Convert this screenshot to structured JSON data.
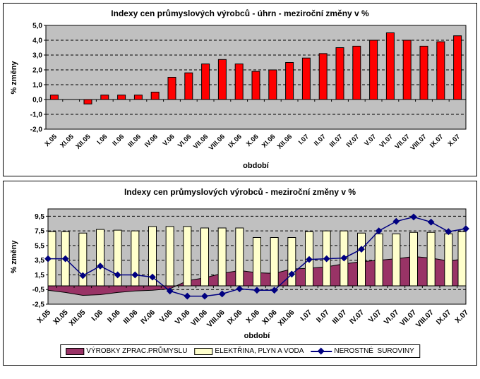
{
  "chart_data": [
    {
      "type": "bar",
      "title": "Indexy cen průmyslových výrobců - úhrn - meziroční změny v %",
      "ylabel": "% změny",
      "xlabel": "období",
      "ylim": [
        -2,
        5
      ],
      "ytick_values": [
        5,
        4,
        3,
        2,
        1,
        0,
        -1,
        -2
      ],
      "ytick_labels": [
        "5,0",
        "4,0",
        "3,0",
        "2,0",
        "1,0",
        "0,0",
        "-1,0",
        "-2,0"
      ],
      "grid": "dashed-horizontal",
      "legend_position": "none",
      "plot_bg": "#c0c0c0",
      "categories": [
        "X.05",
        "XI.05",
        "XII.05",
        "I.06",
        "II.06",
        "III.06",
        "IV.06",
        "V.06",
        "VI.06",
        "VII.06",
        "VIII.06",
        "IX.06",
        "X.06",
        "XI.06",
        "XII.06",
        "I.07",
        "II.07",
        "III.07",
        "IV.07",
        "V.07",
        "VI.07",
        "VII.07",
        "VIII.07",
        "IX.07",
        "X.07"
      ],
      "series": [
        {
          "name": "úhrn",
          "type": "bar",
          "color": "#ff0000",
          "values": [
            0.3,
            0.0,
            -0.3,
            0.3,
            0.3,
            0.3,
            0.5,
            1.5,
            1.8,
            2.4,
            2.7,
            2.4,
            1.9,
            2.0,
            2.5,
            2.8,
            3.1,
            3.5,
            3.6,
            4.0,
            4.5,
            4.0,
            3.6,
            3.9,
            4.3
          ]
        }
      ]
    },
    {
      "type": "combo",
      "title": "Indexy cen průmyslových výrobců - meziroční změny v %",
      "ylabel": "% změny",
      "xlabel": "období",
      "ylim": [
        -2.5,
        10.5
      ],
      "ytick_values": [
        9.5,
        7.5,
        5.5,
        3.5,
        1.5,
        -0.5,
        -2.5
      ],
      "ytick_labels": [
        "9,5",
        "7,5",
        "5,5",
        "3,5",
        "1,5",
        "-0,5",
        "-2,5"
      ],
      "grid": "dashed-horizontal",
      "legend_position": "bottom",
      "plot_bg": "#c0c0c0",
      "categories": [
        "X.05",
        "XI.05",
        "XII.05",
        "I.06",
        "II.06",
        "III.06",
        "IV.06",
        "V.06",
        "VI.06",
        "VII.06",
        "VIII.06",
        "IX.06",
        "X.06",
        "XI.06",
        "XII.06",
        "I.07",
        "II.07",
        "III.07",
        "IV.07",
        "V.07",
        "VI.07",
        "VII.07",
        "VIII.07",
        "IX.07",
        "X.07"
      ],
      "series": [
        {
          "name": "VÝROBKY ZPRAC.PRŮMYSLU",
          "type": "area",
          "color": "#993366",
          "values": [
            -0.6,
            -0.9,
            -1.3,
            -1.2,
            -0.9,
            -0.7,
            -0.6,
            -0.4,
            0.7,
            1.1,
            1.7,
            2.1,
            1.8,
            1.7,
            2.3,
            2.4,
            2.6,
            3.0,
            3.3,
            3.5,
            3.7,
            4.0,
            3.8,
            3.4,
            3.7
          ]
        },
        {
          "name": "ELEKTŘINA, PLYN A VODA",
          "type": "bar",
          "color": "#ffffcc",
          "values": [
            7.4,
            7.4,
            7.2,
            7.7,
            7.6,
            7.5,
            8.1,
            8.1,
            8.1,
            7.9,
            7.9,
            7.9,
            6.6,
            6.6,
            6.6,
            7.4,
            7.5,
            7.5,
            7.2,
            7.1,
            7.1,
            7.3,
            7.3,
            7.1,
            7.4
          ]
        },
        {
          "name": "NEROSTNÉ  SUROVINY",
          "type": "line",
          "color": "#000080",
          "marker": "diamond",
          "values": [
            3.7,
            3.7,
            1.4,
            2.7,
            1.5,
            1.5,
            1.2,
            -0.7,
            -1.4,
            -1.4,
            -1.1,
            -0.4,
            -0.6,
            -0.6,
            1.6,
            3.6,
            3.7,
            3.8,
            5.0,
            7.5,
            8.8,
            9.4,
            8.7,
            7.4,
            7.8
          ]
        }
      ]
    }
  ]
}
